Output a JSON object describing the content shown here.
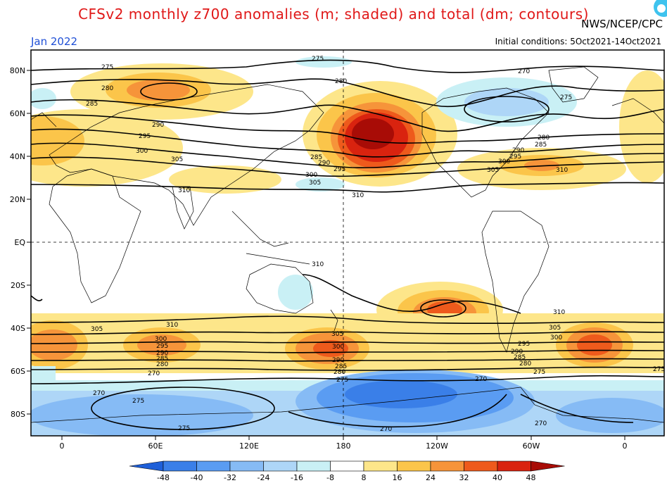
{
  "header": {
    "title": "CFSv2 monthly z700 anomalies (m; shaded) and total (dm; contours)",
    "month": "Jan 2022",
    "agency": "NWS/NCEP/CPC",
    "init": "Initial conditions: 5Oct2021-14Oct2021"
  },
  "axes": {
    "lat_labels": [
      "80N",
      "60N",
      "40N",
      "20N",
      "EQ",
      "20S",
      "40S",
      "60S",
      "80S"
    ],
    "lon_labels": [
      "0",
      "60E",
      "120E",
      "180",
      "120W",
      "60W",
      "0"
    ]
  },
  "contour_labels": [
    "275",
    "280",
    "285",
    "290",
    "295",
    "300",
    "305",
    "310",
    "270"
  ],
  "colorbar": {
    "ticks": [
      "-48",
      "-40",
      "-32",
      "-24",
      "-16",
      "-8",
      "8",
      "16",
      "24",
      "32",
      "40",
      "48"
    ],
    "colors": [
      "#1e5fd8",
      "#3a7fe8",
      "#5a9cf2",
      "#86bbf5",
      "#aed6f7",
      "#c9f0f5",
      "#ffffff",
      "#fde68a",
      "#fbc54a",
      "#f6943a",
      "#ee5a1c",
      "#d9230f",
      "#a80c06"
    ]
  }
}
